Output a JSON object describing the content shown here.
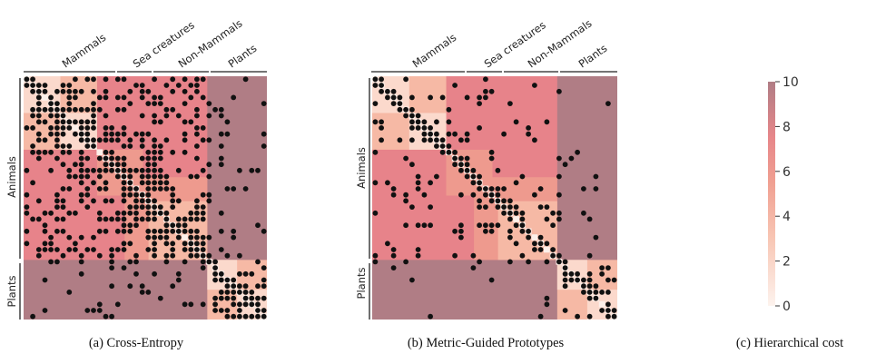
{
  "colors": {
    "cmap": [
      "#fdf0ea",
      "#fbd9cc",
      "#f6b9a5",
      "#ee9a8e",
      "#e7838a",
      "#b07d85"
    ],
    "dot": "#111111"
  },
  "chart_data": [
    {
      "type": "heatmap",
      "subtitle": "(a) Cross-Entropy",
      "top_groups": [
        "Mammals",
        "Sea creatures",
        "Non-Mammals",
        "Plants"
      ],
      "left_groups": [
        "Animals",
        "Plants"
      ],
      "colorbar_label": "Hierarchical cost",
      "blocks": {
        "same_class": 0,
        "same_sub_group": 3,
        "same_group": 4,
        "same_superclass": 6,
        "different_superclass": 10
      },
      "errors": "black dots = misclassifications (dense)"
    },
    {
      "type": "heatmap",
      "subtitle": "(b) Metric-Guided Prototypes",
      "top_groups": [
        "Mammals",
        "Sea creatures",
        "Non-Mammals",
        "Plants"
      ],
      "left_groups": [
        "Animals",
        "Plants"
      ],
      "blocks": {
        "same_class": 0,
        "same_sub_group": 3,
        "same_group": 4,
        "same_superclass": 6,
        "different_superclass": 10
      },
      "errors": "black dots = misclassifications (sparser)"
    },
    {
      "type": "colorbar",
      "subtitle": "(c) Hierarchical cost",
      "ticks": [
        10,
        8,
        6,
        4,
        2,
        0
      ],
      "ylim": [
        0,
        10
      ]
    }
  ],
  "captions": {
    "a": "(a) Cross-Entropy",
    "b": "(b) Metric-Guided Prototypes",
    "c": "(c) Hierarchical cost"
  },
  "labels": {
    "mammals": "Mammals",
    "sea": "Sea creatures",
    "nonmammals": "Non-Mammals",
    "plants": "Plants",
    "animals": "Animals",
    "plants_left": "Plants"
  },
  "colorbar_ticks": [
    "10",
    "8",
    "6",
    "4",
    "2",
    "0"
  ]
}
